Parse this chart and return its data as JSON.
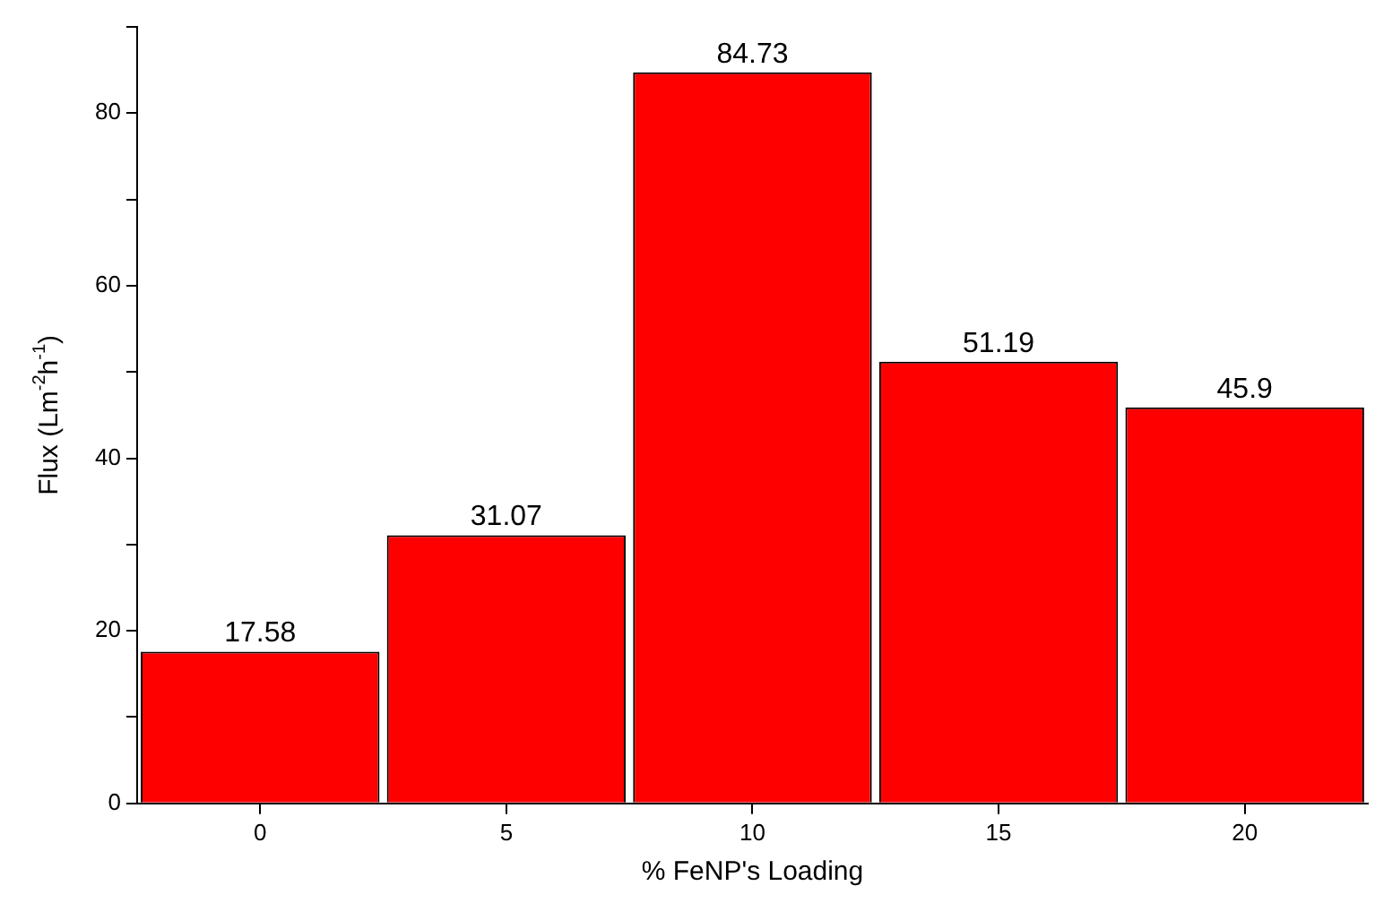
{
  "chart_data": {
    "type": "bar",
    "xlabel": "% FeNP's Loading",
    "ylabel": "Flux (Lm$^{-2}$h$^{-1}$)",
    "categories": [
      "0",
      "5",
      "10",
      "15",
      "20"
    ],
    "values": [
      17.58,
      31.07,
      84.73,
      51.19,
      45.9
    ],
    "color": "#ff0000",
    "ylim": [
      0,
      90
    ],
    "yticks": [
      0,
      {
        "value": 10,
        "label": null
      },
      20,
      {
        "value": 30,
        "label": null
      },
      40,
      {
        "value": 50,
        "label": null
      },
      60,
      {
        "value": 70,
        "label": null
      },
      80,
      {
        "value": 90,
        "label": null
      }
    ],
    "data_labels": true,
    "grid": false,
    "legend": false
  }
}
